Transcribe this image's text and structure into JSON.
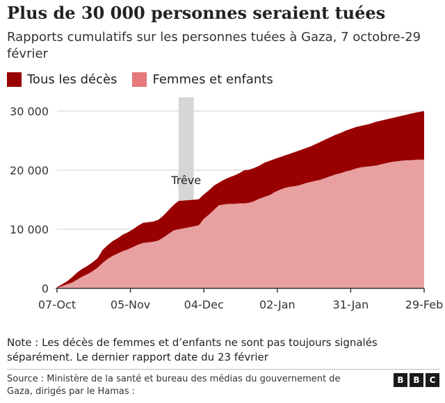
{
  "title": "Plus de 30 000 personnes seraient tuées",
  "subtitle": "Rapports cumulatifs sur les personnes tuées à Gaza, 7 octobre-29 février",
  "legend": [
    {
      "label": "Tous les décès",
      "color": "#990000"
    },
    {
      "label": "Femmes et enfants",
      "color": "#e57878"
    }
  ],
  "annotation": "Trêve",
  "note": "Note : Les décès de femmes et d’enfants ne sont pas toujours signalés séparément. Le dernier rapport date du 23 février",
  "source": "Source : Ministère de la santé et bureau des médias du gouvernement de Gaza, dirigés par le Hamas :",
  "logo": [
    "B",
    "B",
    "C"
  ],
  "colors": {
    "all_deaths": "#990000",
    "women_children": "#e8a0a0",
    "truce": "#d6d6d6",
    "axis": "#333333",
    "grid": "#cccccc"
  },
  "chart_data": {
    "type": "area",
    "x_ticks": [
      "07-Oct",
      "05-Nov",
      "04-Dec",
      "02-Jan",
      "31-Jan",
      "29-Feb"
    ],
    "y_ticks": [
      "0",
      "10 000",
      "20 000",
      "30 000"
    ],
    "ylim": [
      0,
      30000
    ],
    "xlim": [
      "2023-10-07",
      "2024-02-29"
    ],
    "truce": {
      "label": "Trêve",
      "start": "2023-11-24",
      "end": "2023-11-30"
    },
    "series": [
      {
        "name": "Tous les décès",
        "points": [
          [
            "2023-10-07",
            200
          ],
          [
            "2023-10-09",
            700
          ],
          [
            "2023-10-11",
            1200
          ],
          [
            "2023-10-13",
            1900
          ],
          [
            "2023-10-15",
            2700
          ],
          [
            "2023-10-17",
            3300
          ],
          [
            "2023-10-19",
            3800
          ],
          [
            "2023-10-21",
            4400
          ],
          [
            "2023-10-23",
            5100
          ],
          [
            "2023-10-25",
            6500
          ],
          [
            "2023-10-27",
            7300
          ],
          [
            "2023-10-29",
            8000
          ],
          [
            "2023-10-31",
            8500
          ],
          [
            "2023-11-02",
            9100
          ],
          [
            "2023-11-04",
            9500
          ],
          [
            "2023-11-06",
            10000
          ],
          [
            "2023-11-08",
            10600
          ],
          [
            "2023-11-10",
            11100
          ],
          [
            "2023-11-12",
            11200
          ],
          [
            "2023-11-14",
            11300
          ],
          [
            "2023-11-16",
            11600
          ],
          [
            "2023-11-18",
            12300
          ],
          [
            "2023-11-20",
            13200
          ],
          [
            "2023-11-22",
            14100
          ],
          [
            "2023-11-24",
            14800
          ],
          [
            "2023-11-30",
            15000
          ],
          [
            "2023-12-02",
            15100
          ],
          [
            "2023-12-04",
            15900
          ],
          [
            "2023-12-06",
            16600
          ],
          [
            "2023-12-08",
            17400
          ],
          [
            "2023-12-10",
            17900
          ],
          [
            "2023-12-12",
            18400
          ],
          [
            "2023-12-14",
            18800
          ],
          [
            "2023-12-16",
            19100
          ],
          [
            "2023-12-18",
            19500
          ],
          [
            "2023-12-20",
            20000
          ],
          [
            "2023-12-22",
            20100
          ],
          [
            "2023-12-24",
            20400
          ],
          [
            "2023-12-26",
            20800
          ],
          [
            "2023-12-28",
            21300
          ],
          [
            "2023-12-30",
            21600
          ],
          [
            "2024-01-01",
            21900
          ],
          [
            "2024-01-03",
            22200
          ],
          [
            "2024-01-05",
            22500
          ],
          [
            "2024-01-07",
            22800
          ],
          [
            "2024-01-09",
            23100
          ],
          [
            "2024-01-11",
            23400
          ],
          [
            "2024-01-13",
            23700
          ],
          [
            "2024-01-15",
            24000
          ],
          [
            "2024-01-17",
            24400
          ],
          [
            "2024-01-19",
            24800
          ],
          [
            "2024-01-21",
            25200
          ],
          [
            "2024-01-23",
            25600
          ],
          [
            "2024-01-25",
            26000
          ],
          [
            "2024-01-27",
            26300
          ],
          [
            "2024-01-29",
            26700
          ],
          [
            "2024-01-31",
            27000
          ],
          [
            "2024-02-02",
            27300
          ],
          [
            "2024-02-04",
            27500
          ],
          [
            "2024-02-06",
            27700
          ],
          [
            "2024-02-08",
            27900
          ],
          [
            "2024-02-10",
            28200
          ],
          [
            "2024-02-12",
            28400
          ],
          [
            "2024-02-14",
            28600
          ],
          [
            "2024-02-16",
            28800
          ],
          [
            "2024-02-18",
            29000
          ],
          [
            "2024-02-20",
            29200
          ],
          [
            "2024-02-22",
            29400
          ],
          [
            "2024-02-24",
            29600
          ],
          [
            "2024-02-26",
            29800
          ],
          [
            "2024-02-29",
            30000
          ]
        ]
      },
      {
        "name": "Femmes et enfants",
        "points": [
          [
            "2023-10-07",
            100
          ],
          [
            "2023-10-09",
            400
          ],
          [
            "2023-10-11",
            700
          ],
          [
            "2023-10-13",
            1000
          ],
          [
            "2023-10-15",
            1500
          ],
          [
            "2023-10-17",
            2000
          ],
          [
            "2023-10-19",
            2400
          ],
          [
            "2023-10-21",
            2900
          ],
          [
            "2023-10-23",
            3500
          ],
          [
            "2023-10-25",
            4300
          ],
          [
            "2023-10-27",
            5000
          ],
          [
            "2023-10-29",
            5500
          ],
          [
            "2023-10-31",
            5900
          ],
          [
            "2023-11-02",
            6300
          ],
          [
            "2023-11-04",
            6600
          ],
          [
            "2023-11-06",
            7000
          ],
          [
            "2023-11-08",
            7400
          ],
          [
            "2023-11-10",
            7700
          ],
          [
            "2023-11-12",
            7800
          ],
          [
            "2023-11-14",
            7900
          ],
          [
            "2023-11-16",
            8100
          ],
          [
            "2023-11-18",
            8600
          ],
          [
            "2023-11-20",
            9200
          ],
          [
            "2023-11-22",
            9800
          ],
          [
            "2023-11-24",
            10000
          ],
          [
            "2023-11-30",
            10500
          ],
          [
            "2023-12-02",
            10700
          ],
          [
            "2023-12-04",
            11800
          ],
          [
            "2023-12-06",
            12500
          ],
          [
            "2023-12-08",
            13300
          ],
          [
            "2023-12-10",
            14100
          ],
          [
            "2023-12-12",
            14200
          ],
          [
            "2023-12-14",
            14300
          ],
          [
            "2023-12-16",
            14300
          ],
          [
            "2023-12-18",
            14400
          ],
          [
            "2023-12-20",
            14400
          ],
          [
            "2023-12-22",
            14500
          ],
          [
            "2023-12-24",
            14800
          ],
          [
            "2023-12-26",
            15200
          ],
          [
            "2023-12-28",
            15500
          ],
          [
            "2023-12-30",
            15800
          ],
          [
            "2024-01-01",
            16300
          ],
          [
            "2024-01-03",
            16700
          ],
          [
            "2024-01-05",
            17000
          ],
          [
            "2024-01-07",
            17200
          ],
          [
            "2024-01-09",
            17300
          ],
          [
            "2024-01-11",
            17500
          ],
          [
            "2024-01-13",
            17800
          ],
          [
            "2024-01-15",
            18000
          ],
          [
            "2024-01-17",
            18200
          ],
          [
            "2024-01-19",
            18400
          ],
          [
            "2024-01-21",
            18700
          ],
          [
            "2024-01-23",
            19000
          ],
          [
            "2024-01-25",
            19300
          ],
          [
            "2024-01-27",
            19500
          ],
          [
            "2024-01-29",
            19800
          ],
          [
            "2024-01-31",
            20000
          ],
          [
            "2024-02-02",
            20300
          ],
          [
            "2024-02-04",
            20500
          ],
          [
            "2024-02-06",
            20600
          ],
          [
            "2024-02-08",
            20700
          ],
          [
            "2024-02-10",
            20800
          ],
          [
            "2024-02-12",
            21000
          ],
          [
            "2024-02-14",
            21200
          ],
          [
            "2024-02-16",
            21400
          ],
          [
            "2024-02-18",
            21500
          ],
          [
            "2024-02-20",
            21600
          ],
          [
            "2024-02-22",
            21700
          ],
          [
            "2024-02-24",
            21700
          ],
          [
            "2024-02-26",
            21800
          ],
          [
            "2024-02-29",
            21800
          ]
        ]
      }
    ],
    "grid": "horizontal",
    "legend_position": "top-left"
  }
}
